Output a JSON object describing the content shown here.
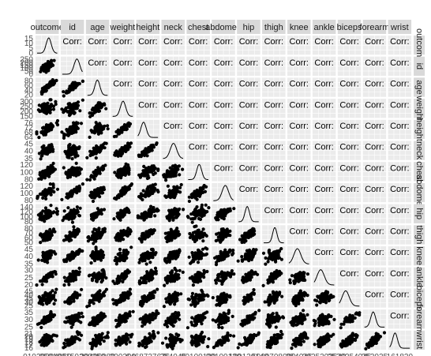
{
  "chart_data": {
    "type": "scatter",
    "kind": "scatterplot matrix (ggpairs)",
    "variables": [
      "outcome",
      "id",
      "age",
      "weight",
      "height",
      "neck",
      "chest",
      "abdomen",
      "hip",
      "thigh",
      "knee",
      "ankle",
      "biceps",
      "forearm",
      "wrist"
    ],
    "strip_labels": [
      "outcome",
      "id",
      "age",
      "weight",
      "height",
      "neck",
      "chest",
      "abdomen",
      "hip",
      "thigh",
      "knee",
      "ankle",
      "biceps",
      "forearm",
      "wrist"
    ],
    "lower_panels": "scatter",
    "diagonal_panels": "density",
    "upper_panels": "correlation text (Corr: ...)",
    "y_tick_labels": [
      [
        "15",
        "10",
        "5",
        "0"
      ],
      [
        "250",
        "200",
        "150",
        "100",
        "50",
        "0"
      ],
      [
        "80",
        "60",
        "40",
        "20"
      ],
      [
        "300",
        "250",
        "200",
        "150"
      ],
      [
        "76",
        "72",
        "68",
        "64"
      ],
      [
        "45",
        "40",
        "35"
      ],
      [
        "120",
        "100",
        "80"
      ],
      [
        "120",
        "100",
        "80"
      ],
      [
        "140",
        "120",
        "100",
        "80"
      ],
      [
        "80",
        "70",
        "60",
        "50"
      ],
      [
        "45",
        "40",
        "35"
      ],
      [
        "30",
        "25",
        "20"
      ],
      [
        "45",
        "40",
        "35",
        "30",
        "25"
      ],
      [
        "35",
        "30",
        "25"
      ],
      [
        "21",
        "20",
        "19",
        "18",
        "17",
        "16"
      ]
    ],
    "x_tick_labels": [
      "01020304050",
      "050100150200250",
      "20406080",
      "200300",
      "6468727676",
      "354045",
      "80100120",
      "80100120",
      "100120140",
      "5060708090",
      "354045",
      "2025303540",
      "2530354045",
      "253035",
      "161820"
    ],
    "upper_text": "Corr:",
    "grid": true,
    "background": "#ebebeb",
    "strip_background": "#d9d9d9"
  }
}
